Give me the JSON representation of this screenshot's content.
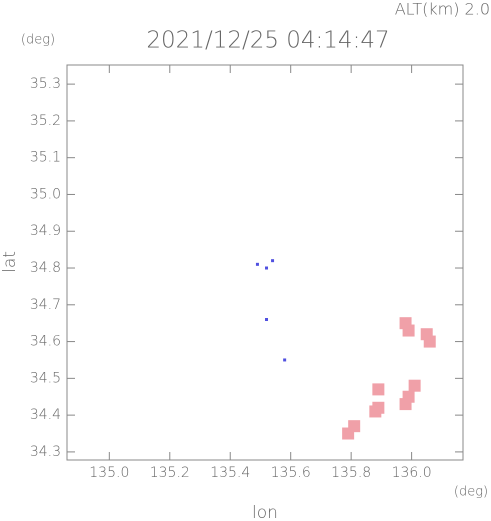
{
  "chart_data": {
    "type": "scatter",
    "title": "2021/12/25 04:14:47",
    "annotation": "ALT(km) 2.0",
    "xlabel": "lon",
    "ylabel": "lat",
    "x_unit": "(deg)",
    "y_unit": "(deg)",
    "xlim": [
      134.86,
      136.17
    ],
    "ylim": [
      34.278,
      35.352
    ],
    "xticks": [
      {
        "value": 135,
        "label": "135.0"
      },
      135.2,
      135.4,
      135.6,
      135.8,
      {
        "value": 136,
        "label": "136.0"
      }
    ],
    "yticks": [
      34.3,
      34.4,
      34.5,
      34.6,
      34.7,
      34.8,
      34.9,
      {
        "value": 35,
        "label": "35.0"
      },
      35.1,
      35.2,
      35.3
    ],
    "series": [
      {
        "color": "#5050e0",
        "x": [
          135.49,
          135.52,
          135.54,
          135.52,
          135.58
        ],
        "values": [
          34.81,
          34.8,
          34.82,
          34.66,
          34.55
        ]
      },
      {
        "color": "#f0a0a8",
        "x": [
          135.98,
          135.99,
          136.05,
          136.06,
          135.89,
          135.89,
          135.99,
          136.01,
          135.98,
          135.88,
          135.81,
          135.79
        ],
        "values": [
          34.65,
          34.63,
          34.62,
          34.6,
          34.47,
          34.42,
          34.45,
          34.48,
          34.43,
          34.41,
          34.37,
          34.35
        ]
      }
    ]
  }
}
